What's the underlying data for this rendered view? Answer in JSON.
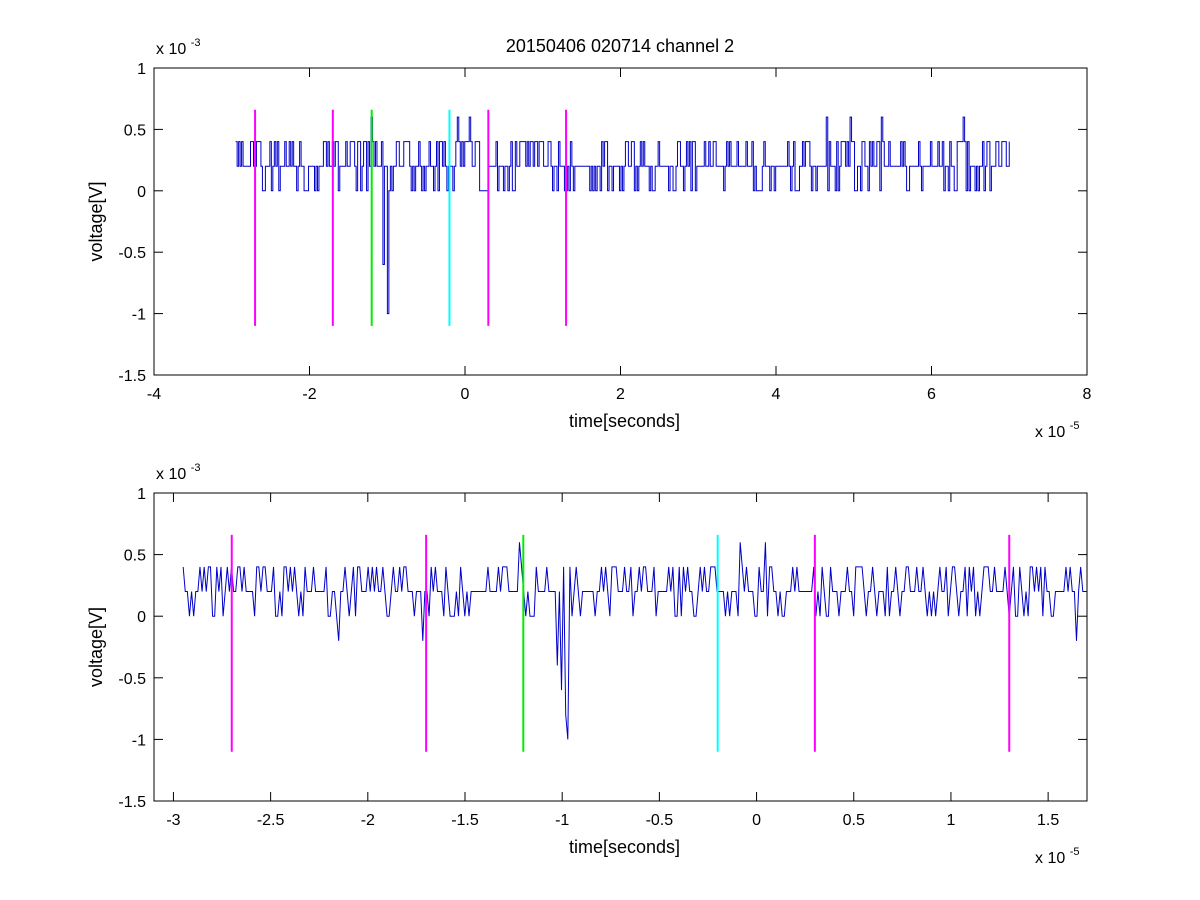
{
  "title": "20150406 020714 channel 2",
  "colors": {
    "trace": "#0000c8",
    "magenta": "#ff00ff",
    "green": "#00ee00",
    "cyan": "#00ffff",
    "axes": "#000000",
    "background": "#ffffff"
  },
  "chart_data": [
    {
      "type": "line",
      "title": "20150406 020714 channel 2",
      "xlabel": "time[seconds]",
      "ylabel": "voltage[V]",
      "x_exponent_label": "x 10",
      "x_exponent": "-5",
      "y_exponent_label": "x 10",
      "y_exponent": "-3",
      "xlim": [
        -4,
        8
      ],
      "ylim": [
        -1.5,
        1
      ],
      "xticks": [
        -4,
        -2,
        0,
        2,
        4,
        6,
        8
      ],
      "xtick_labels": [
        "-4",
        "-2",
        "0",
        "2",
        "4",
        "6",
        "8"
      ],
      "yticks": [
        1,
        0.5,
        0,
        -0.5,
        -1,
        -1.5
      ],
      "ytick_labels": [
        "1",
        "0.5",
        "0",
        "-0.5",
        "-1",
        "-1.5"
      ],
      "grid": false,
      "series": [
        {
          "style": "step",
          "x_range": [
            -2.95,
            7.0
          ],
          "baseline": 0.2,
          "levels": [
            0,
            0.2,
            0.4
          ],
          "spikes": [
            {
              "x": -1.0,
              "y": -1.0
            },
            {
              "x": -1.05,
              "y": -0.6
            },
            {
              "x": -1.2,
              "y": 0.6
            },
            {
              "x": -0.1,
              "y": 0.6
            },
            {
              "x": 0.05,
              "y": 0.6
            },
            {
              "x": 4.65,
              "y": 0.6
            },
            {
              "x": 4.95,
              "y": 0.6
            },
            {
              "x": 5.35,
              "y": 0.6
            },
            {
              "x": 6.4,
              "y": 0.6
            }
          ]
        }
      ],
      "markers": [
        {
          "x": -2.7,
          "color": "magenta",
          "y_range": [
            -1.1,
            0.66
          ]
        },
        {
          "x": -1.7,
          "color": "magenta",
          "y_range": [
            -1.1,
            0.66
          ]
        },
        {
          "x": -1.2,
          "color": "green",
          "y_range": [
            -1.1,
            0.66
          ]
        },
        {
          "x": -0.2,
          "color": "cyan",
          "y_range": [
            -1.1,
            0.66
          ]
        },
        {
          "x": 0.3,
          "color": "magenta",
          "y_range": [
            -1.1,
            0.66
          ]
        },
        {
          "x": 1.3,
          "color": "magenta",
          "y_range": [
            -1.1,
            0.66
          ]
        }
      ]
    },
    {
      "type": "line",
      "xlabel": "time[seconds]",
      "ylabel": "voltage[V]",
      "x_exponent_label": "x 10",
      "x_exponent": "-5",
      "y_exponent_label": "x 10",
      "y_exponent": "-3",
      "xlim": [
        -3.1,
        1.7
      ],
      "ylim": [
        -1.5,
        1
      ],
      "xticks": [
        -3,
        -2.5,
        -2,
        -1.5,
        -1,
        -0.5,
        0,
        0.5,
        1,
        1.5
      ],
      "xtick_labels": [
        "-3",
        "-2.5",
        "-2",
        "-1.5",
        "-1",
        "-0.5",
        "0",
        "0.5",
        "1",
        "1.5"
      ],
      "yticks": [
        1,
        0.5,
        0,
        -0.5,
        -1,
        -1.5
      ],
      "ytick_labels": [
        "1",
        "0.5",
        "0",
        "-0.5",
        "-1",
        "-1.5"
      ],
      "grid": false,
      "series": [
        {
          "style": "line",
          "x_range": [
            -2.95,
            1.7
          ],
          "baseline": 0.2,
          "levels": [
            0,
            0.2,
            0.4
          ],
          "spikes": [
            {
              "x": -0.97,
              "y": -1.0
            },
            {
              "x": -0.98,
              "y": -0.8
            },
            {
              "x": -1.0,
              "y": -0.6
            },
            {
              "x": -1.02,
              "y": -0.4
            },
            {
              "x": -1.22,
              "y": 0.6
            },
            {
              "x": -0.08,
              "y": 0.6
            },
            {
              "x": 0.05,
              "y": 0.6
            },
            {
              "x": -2.15,
              "y": -0.2
            },
            {
              "x": -1.72,
              "y": -0.2
            },
            {
              "x": 1.65,
              "y": -0.2
            }
          ]
        }
      ],
      "markers": [
        {
          "x": -2.7,
          "color": "magenta",
          "y_range": [
            -1.1,
            0.66
          ]
        },
        {
          "x": -1.7,
          "color": "magenta",
          "y_range": [
            -1.1,
            0.66
          ]
        },
        {
          "x": -1.2,
          "color": "green",
          "y_range": [
            -1.1,
            0.66
          ]
        },
        {
          "x": -0.2,
          "color": "cyan",
          "y_range": [
            -1.1,
            0.66
          ]
        },
        {
          "x": 0.3,
          "color": "magenta",
          "y_range": [
            -1.1,
            0.66
          ]
        },
        {
          "x": 1.3,
          "color": "magenta",
          "y_range": [
            -1.1,
            0.66
          ]
        }
      ]
    }
  ]
}
